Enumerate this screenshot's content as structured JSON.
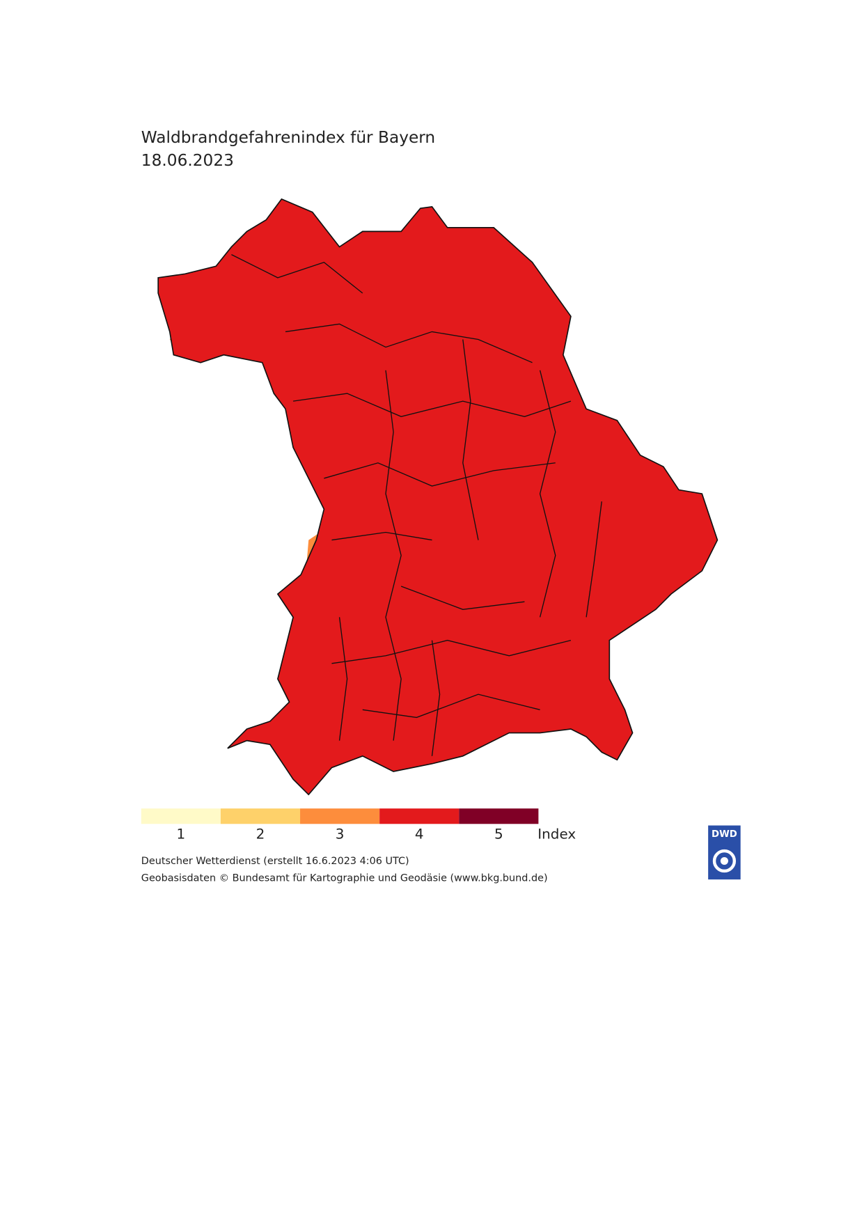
{
  "header": {
    "title": "Waldbrandgefahrenindex für Bayern",
    "date": "18.06.2023"
  },
  "legend": {
    "items": [
      {
        "label": "1",
        "color": "#fffac8"
      },
      {
        "label": "2",
        "color": "#fed16a"
      },
      {
        "label": "3",
        "color": "#fd8d3c"
      },
      {
        "label": "4",
        "color": "#e31a1c"
      },
      {
        "label": "5",
        "color": "#800026"
      }
    ],
    "unit": "Index"
  },
  "footer": {
    "source": "Deutscher Wetterdienst (erstellt 16.6.2023 4:06 UTC)",
    "credit": "Geobasisdaten © Bundesamt für Kartographie und Geodäsie (www.bkg.bund.de)"
  },
  "logo": {
    "text": "DWD"
  }
}
